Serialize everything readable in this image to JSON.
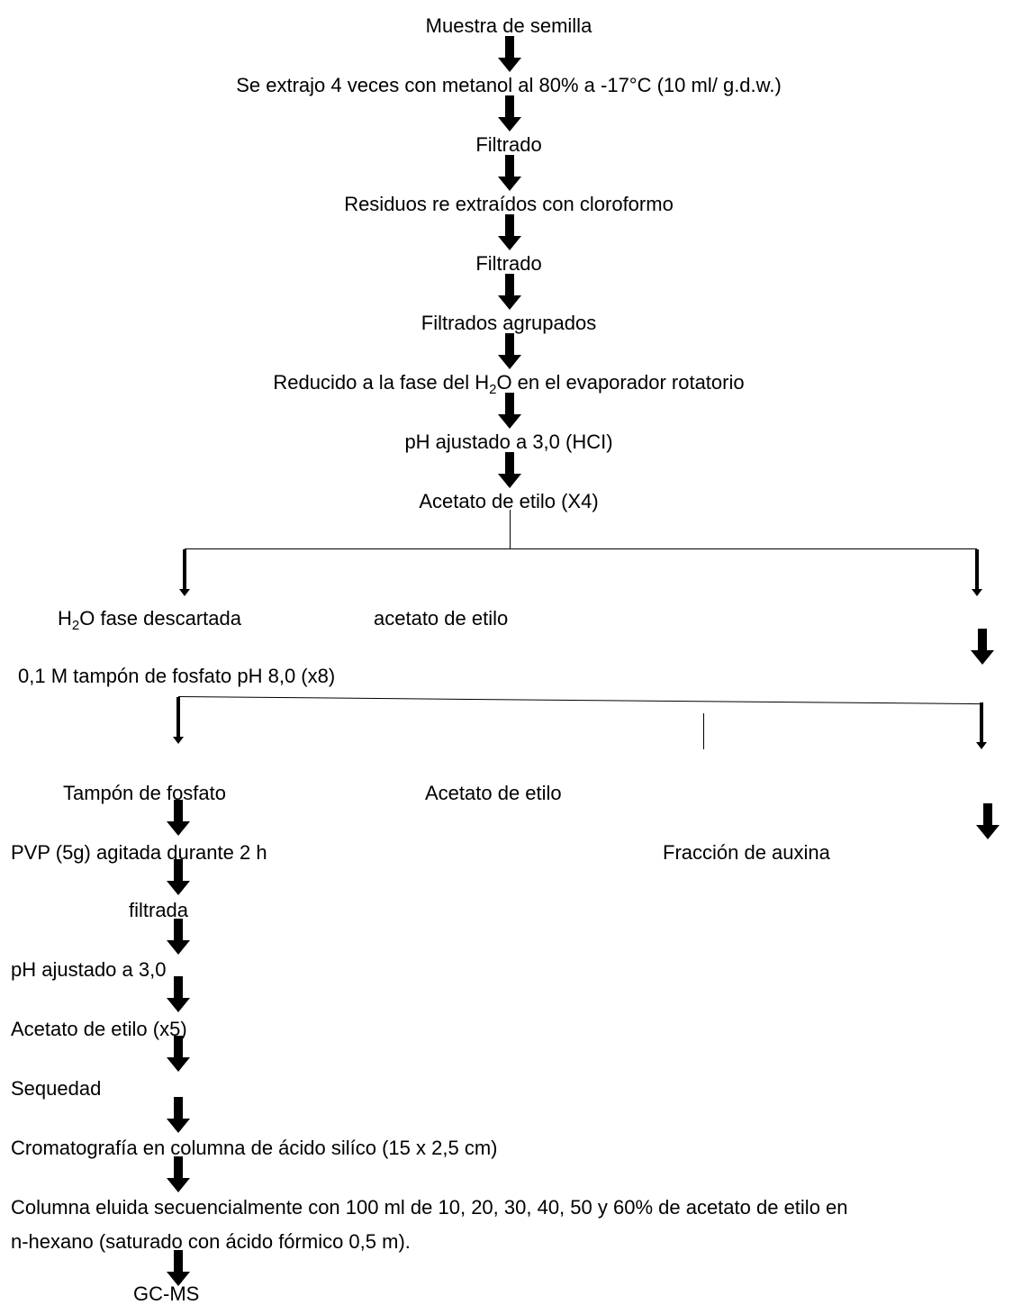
{
  "steps": {
    "s1": "Muestra de semilla",
    "s2": "Se extrajo 4 veces con metanol al 80% a -17°C (10 ml/ g.d.w.)",
    "s3": "Filtrado",
    "s4": "Residuos re extraídos con cloroformo",
    "s5": "Filtrado",
    "s6": "Filtrados agrupados",
    "s7_pre": "Reducido a la fase del H",
    "s7_sub": "2",
    "s7_post": "O en el evaporador rotatorio",
    "s8": "pH ajustado a 3,0 (HCI)",
    "s9": "Acetato de etilo (X4)"
  },
  "branch1": {
    "left_pre": "H",
    "left_sub": "2",
    "left_post": "O fase descartada",
    "middle": "acetato de etilo",
    "buffer": "0,1 M tampón de fosfato pH 8,0 (x8)"
  },
  "branch2": {
    "left": "Tampón de fosfato",
    "middle": "Acetato de etilo",
    "auxin": "Fracción de auxina"
  },
  "lower": {
    "l1": "PVP (5g) agitada durante 2 h",
    "l2": "filtrada",
    "l3": "pH ajustado a 3,0",
    "l4": "Acetato de etilo (x5)",
    "l5": "Sequedad",
    "l6": "Cromatografía en columna de ácido silíco (15 x 2,5 cm)",
    "l7a": "Columna eluida secuencialmente con 100 ml de 10, 20, 30, 40, 50 y 60% de acetato de etilo en",
    "l7b": "n-hexano (saturado con ácido fórmico 0,5 m).",
    "l8": "GC-MS"
  }
}
